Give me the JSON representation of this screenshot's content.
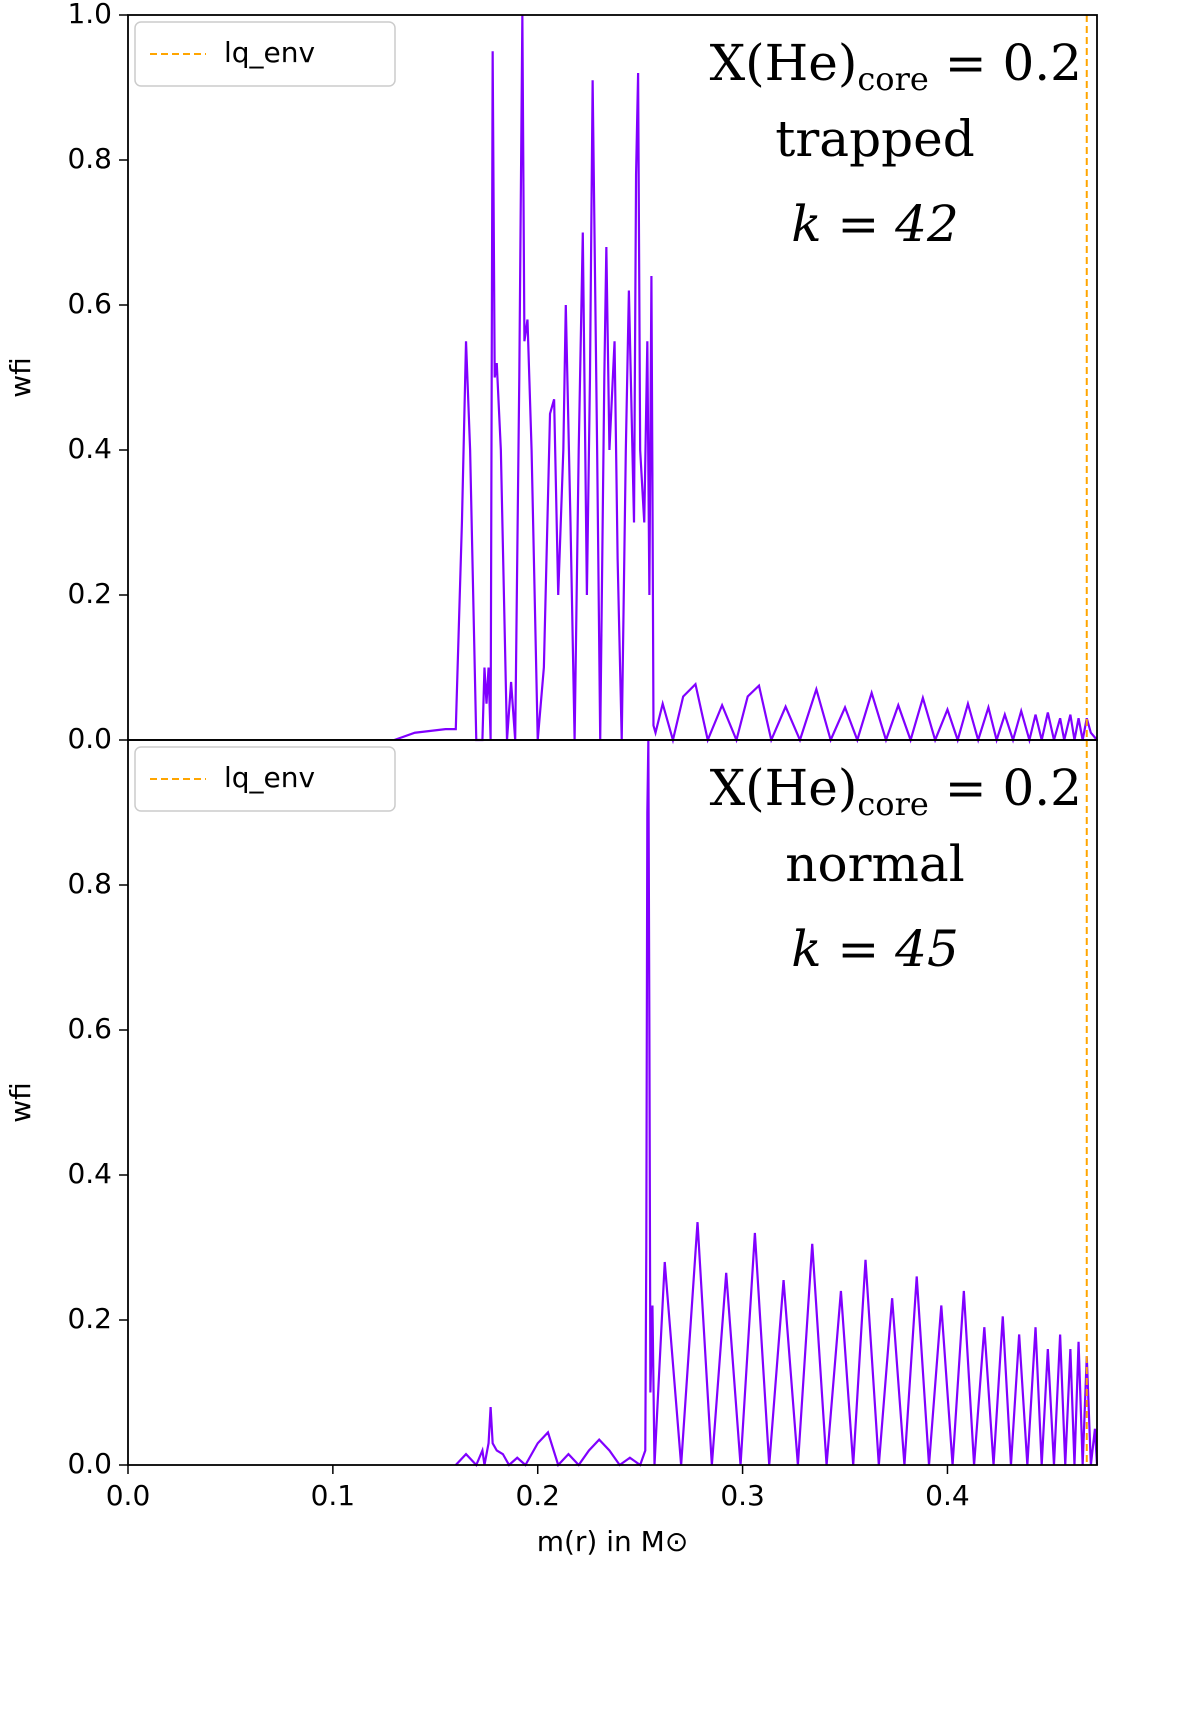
{
  "chart_data": [
    {
      "type": "line",
      "ylabel": "wfi",
      "color": "#8000ff",
      "x": [
        0.13,
        0.14,
        0.155,
        0.16,
        0.163,
        0.165,
        0.167,
        0.17,
        0.173,
        0.174,
        0.175,
        0.176,
        0.177,
        0.178,
        0.179,
        0.18,
        0.182,
        0.185,
        0.187,
        0.189,
        0.191,
        0.1925,
        0.1935,
        0.195,
        0.197,
        0.2,
        0.203,
        0.206,
        0.208,
        0.21,
        0.2125,
        0.2137,
        0.216,
        0.218,
        0.22,
        0.222,
        0.224,
        0.2255,
        0.2268,
        0.229,
        0.2305,
        0.2325,
        0.2335,
        0.235,
        0.2375,
        0.239,
        0.241,
        0.243,
        0.2445,
        0.247,
        0.248,
        0.249,
        0.25,
        0.252,
        0.2535,
        0.2545,
        0.2555,
        0.256,
        0.2565,
        0.2575,
        0.261,
        0.266,
        0.271,
        0.277,
        0.283,
        0.29,
        0.297,
        0.3025,
        0.308,
        0.314,
        0.321,
        0.328,
        0.336,
        0.343,
        0.35,
        0.356,
        0.363,
        0.37,
        0.376,
        0.382,
        0.388,
        0.394,
        0.4,
        0.405,
        0.41,
        0.415,
        0.42,
        0.424,
        0.428,
        0.432,
        0.436,
        0.44,
        0.443,
        0.446,
        0.449,
        0.452,
        0.455,
        0.457,
        0.46,
        0.462,
        0.464,
        0.466,
        0.468,
        0.47,
        0.473
      ],
      "values": [
        0,
        0.01,
        0.015,
        0.015,
        0.3,
        0.55,
        0.4,
        0,
        0,
        0.1,
        0.05,
        0.1,
        0,
        0.95,
        0.5,
        0.52,
        0.4,
        0,
        0.08,
        0,
        0.5,
        1.0,
        0.55,
        0.58,
        0.4,
        0,
        0.1,
        0.45,
        0.47,
        0.2,
        0.4,
        0.6,
        0.3,
        0,
        0.4,
        0.7,
        0.2,
        0.5,
        0.91,
        0.4,
        0,
        0.5,
        0.68,
        0.4,
        0.55,
        0.25,
        0,
        0.4,
        0.62,
        0.3,
        0.78,
        0.92,
        0.4,
        0.3,
        0.55,
        0.2,
        0.64,
        0.35,
        0.02,
        0.01,
        0.05,
        0,
        0.06,
        0.077,
        0,
        0.048,
        0,
        0.06,
        0.075,
        0,
        0.046,
        0,
        0.07,
        0,
        0.045,
        0,
        0.065,
        0,
        0.048,
        0,
        0.058,
        0,
        0.042,
        0,
        0.05,
        0,
        0.045,
        0,
        0.035,
        0,
        0.04,
        0,
        0.035,
        0,
        0.038,
        0,
        0.03,
        0,
        0.035,
        0,
        0.03,
        0,
        0.03,
        0.01,
        0
      ],
      "xlim": [
        0,
        0.473
      ],
      "ylim": [
        0,
        1.0
      ],
      "yticks": [
        {
          "value": 0,
          "label": "0.0"
        },
        0.2,
        0.4,
        0.6,
        0.8,
        {
          "value": 1,
          "label": "1.0"
        }
      ],
      "vline": {
        "x": 0.468,
        "label": "lq_env",
        "color": "#ffa500"
      },
      "legend": "upper left",
      "annotation": {
        "main": "X(He)",
        "sub": "core",
        "rest": " = 0.2",
        "line2": "trapped",
        "line3": "k = 42"
      }
    },
    {
      "type": "line",
      "ylabel": "wfi",
      "xlabel": "m(r) in M⊙",
      "color": "#8000ff",
      "x": [
        0.16,
        0.165,
        0.17,
        0.173,
        0.174,
        0.176,
        0.177,
        0.178,
        0.18,
        0.183,
        0.186,
        0.19,
        0.194,
        0.2,
        0.205,
        0.21,
        0.215,
        0.22,
        0.225,
        0.23,
        0.235,
        0.24,
        0.245,
        0.25,
        0.2525,
        0.253,
        0.2535,
        0.254,
        0.2545,
        0.255,
        0.256,
        0.257,
        0.262,
        0.27,
        0.278,
        0.285,
        0.292,
        0.299,
        0.306,
        0.313,
        0.32,
        0.327,
        0.334,
        0.341,
        0.348,
        0.354,
        0.36,
        0.3665,
        0.373,
        0.379,
        0.385,
        0.391,
        0.397,
        0.4025,
        0.408,
        0.413,
        0.418,
        0.4225,
        0.427,
        0.431,
        0.435,
        0.439,
        0.443,
        0.446,
        0.449,
        0.452,
        0.455,
        0.4575,
        0.46,
        0.462,
        0.464,
        0.466,
        0.468,
        0.47,
        0.472,
        0.473
      ],
      "values": [
        0,
        0.015,
        0,
        0.02,
        0,
        0.03,
        0.08,
        0.03,
        0.02,
        0.015,
        0,
        0.01,
        0,
        0.03,
        0.045,
        0,
        0.015,
        0,
        0.02,
        0.035,
        0.02,
        0,
        0.01,
        0,
        0.02,
        0.3,
        0.9,
        1.0,
        0.6,
        0.1,
        0.22,
        0,
        0.28,
        0,
        0.335,
        0,
        0.265,
        0,
        0.32,
        0,
        0.255,
        0,
        0.305,
        0,
        0.24,
        0,
        0.283,
        0,
        0.23,
        0,
        0.26,
        0,
        0.22,
        0,
        0.24,
        0,
        0.19,
        0,
        0.205,
        0,
        0.18,
        0,
        0.19,
        0,
        0.16,
        0,
        0.18,
        0,
        0.16,
        0,
        0.17,
        0,
        0.15,
        0,
        0.05,
        0
      ],
      "xlim": [
        0,
        0.473
      ],
      "ylim": [
        0,
        1.0
      ],
      "xticks": [
        {
          "value": 0,
          "label": "0.0"
        },
        0.1,
        0.2,
        0.3,
        0.4
      ],
      "yticks": [
        {
          "value": 0,
          "label": "0.0"
        },
        0.2,
        0.4,
        0.6,
        0.8
      ],
      "vline": {
        "x": 0.468,
        "label": "lq_env",
        "color": "#ffa500"
      },
      "legend": "upper left",
      "annotation": {
        "main": "X(He)",
        "sub": "core",
        "rest": " = 0.2",
        "line2": "normal",
        "line3": "k = 45"
      }
    }
  ]
}
